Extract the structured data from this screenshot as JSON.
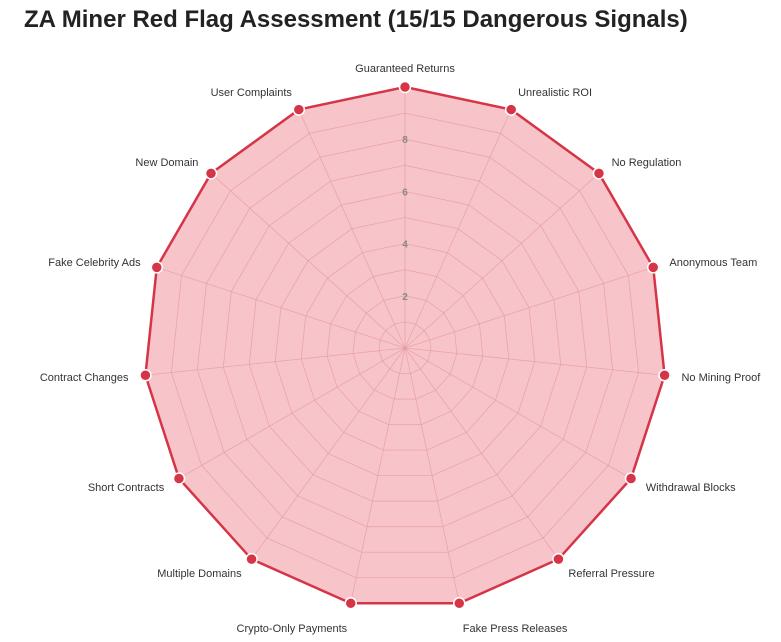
{
  "title": "ZA Miner Red Flag Assessment (15/15 Dangerous Signals)",
  "chart_data": {
    "type": "radar",
    "title": "ZA Miner Red Flag Assessment (15/15 Dangerous Signals)",
    "categories": [
      "Guaranteed Returns",
      "Unrealistic ROI",
      "No Regulation",
      "Anonymous Team",
      "No Mining Proof",
      "Withdrawal Blocks",
      "Referral Pressure",
      "Fake Press Releases",
      "Crypto-Only Payments",
      "Multiple Domains",
      "Short Contracts",
      "Contract Changes",
      "Fake Celebrity Ads",
      "New Domain",
      "User Complaints"
    ],
    "series": [
      {
        "values": [
          10,
          10,
          10,
          10,
          10,
          10,
          10,
          10,
          10,
          10,
          10,
          10,
          10,
          10,
          10
        ]
      }
    ],
    "rlim": [
      0,
      10
    ],
    "ticks": [
      "2",
      "4",
      "6",
      "8"
    ],
    "tick_values": [
      2,
      4,
      6,
      8
    ],
    "grid": true,
    "legend": "none",
    "colors": {
      "line": "#d63447",
      "fill": "#f08a96",
      "point": "#d63447",
      "grid": "#d9a3aa"
    }
  }
}
